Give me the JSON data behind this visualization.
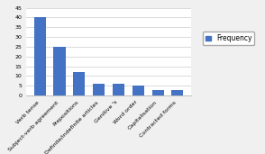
{
  "categories": [
    "Verb tense",
    "Subject-verb agreement",
    "Prepositions",
    "Definite/indefinite articles",
    "Genitive 's",
    "Word order",
    "Capitalisation",
    "Contracted forms"
  ],
  "values": [
    40,
    25,
    12,
    6,
    6,
    5,
    3,
    3
  ],
  "bar_color": "#4472C4",
  "legend_label": "Frequency",
  "ylim": [
    0,
    45
  ],
  "yticks": [
    0,
    5,
    10,
    15,
    20,
    25,
    30,
    35,
    40,
    45
  ],
  "background_color": "#f0f0f0",
  "plot_bg_color": "#ffffff",
  "bar_width": 0.6,
  "tick_fontsize": 4.5,
  "legend_fontsize": 5.5
}
